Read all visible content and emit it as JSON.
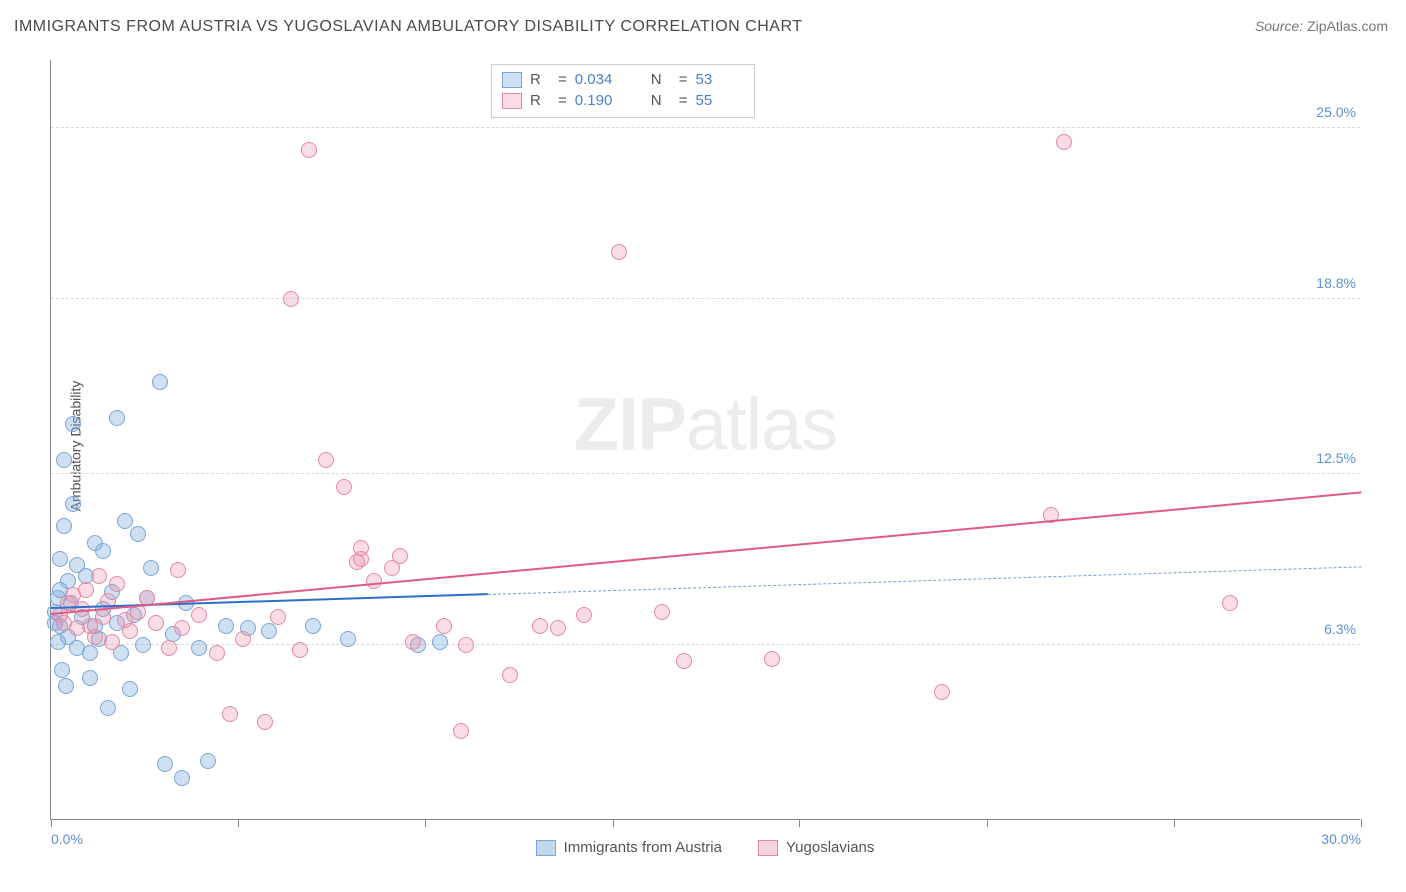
{
  "title": "IMMIGRANTS FROM AUSTRIA VS YUGOSLAVIAN AMBULATORY DISABILITY CORRELATION CHART",
  "source_label": "Source: ",
  "source_value": "ZipAtlas.com",
  "ylabel": "Ambulatory Disability",
  "watermark_bold": "ZIP",
  "watermark_rest": "atlas",
  "chart": {
    "type": "scatter",
    "xlim": [
      0,
      30
    ],
    "ylim": [
      0,
      27.5
    ],
    "xtick_positions": [
      0,
      4.29,
      8.57,
      12.86,
      17.14,
      21.43,
      25.71,
      30
    ],
    "xtick_labels_shown": {
      "0": "0.0%",
      "30": "30.0%"
    },
    "ytick_values": [
      6.3,
      12.5,
      18.8,
      25.0
    ],
    "ytick_labels": [
      "6.3%",
      "12.5%",
      "18.8%",
      "25.0%"
    ],
    "grid_color": "#d8d8d8",
    "background_color": "#ffffff",
    "axis_color": "#888888",
    "label_color": "#5b8fd6",
    "marker_radius": 8,
    "marker_border_width": 1.2,
    "series": [
      {
        "name": "Immigrants from Austria",
        "color_fill": "rgba(120,165,220,0.35)",
        "color_border": "#7aa6d8",
        "r_label": "R",
        "r_value": "0.034",
        "n_label": "N",
        "n_value": "53",
        "regression": {
          "x1": 0,
          "y1": 7.6,
          "x2": 10,
          "y2": 8.1,
          "solid_color": "#2e6fc9",
          "solid_width": 2.5,
          "dash_to_x": 30,
          "dash_to_y": 9.1,
          "dash_color": "#6f9fd8",
          "dash_width": 1.4
        },
        "points": [
          [
            0.1,
            7.1
          ],
          [
            0.1,
            7.5
          ],
          [
            0.15,
            8.0
          ],
          [
            0.15,
            6.4
          ],
          [
            0.2,
            7.0
          ],
          [
            0.2,
            8.3
          ],
          [
            0.2,
            9.4
          ],
          [
            0.25,
            5.4
          ],
          [
            0.3,
            13.0
          ],
          [
            0.3,
            10.6
          ],
          [
            0.35,
            4.8
          ],
          [
            0.4,
            6.6
          ],
          [
            0.4,
            8.6
          ],
          [
            0.45,
            7.8
          ],
          [
            0.5,
            14.3
          ],
          [
            0.5,
            11.4
          ],
          [
            0.6,
            9.2
          ],
          [
            0.6,
            6.2
          ],
          [
            0.7,
            7.3
          ],
          [
            0.8,
            8.8
          ],
          [
            0.9,
            6.0
          ],
          [
            0.9,
            5.1
          ],
          [
            1.0,
            10.0
          ],
          [
            1.0,
            7.0
          ],
          [
            1.1,
            6.5
          ],
          [
            1.2,
            9.7
          ],
          [
            1.2,
            7.6
          ],
          [
            1.3,
            4.0
          ],
          [
            1.4,
            8.2
          ],
          [
            1.5,
            7.1
          ],
          [
            1.5,
            14.5
          ],
          [
            1.6,
            6.0
          ],
          [
            1.7,
            10.8
          ],
          [
            1.8,
            4.7
          ],
          [
            1.9,
            7.4
          ],
          [
            2.0,
            10.3
          ],
          [
            2.1,
            6.3
          ],
          [
            2.2,
            8.0
          ],
          [
            2.3,
            9.1
          ],
          [
            2.5,
            15.8
          ],
          [
            2.6,
            2.0
          ],
          [
            2.8,
            6.7
          ],
          [
            3.0,
            1.5
          ],
          [
            3.1,
            7.8
          ],
          [
            3.4,
            6.2
          ],
          [
            3.6,
            2.1
          ],
          [
            4.0,
            7.0
          ],
          [
            4.5,
            6.9
          ],
          [
            5.0,
            6.8
          ],
          [
            6.8,
            6.5
          ],
          [
            8.4,
            6.3
          ],
          [
            8.9,
            6.4
          ],
          [
            6.0,
            7.0
          ]
        ]
      },
      {
        "name": "Yugoslavians",
        "color_fill": "rgba(235,140,165,0.30)",
        "color_border": "#e38aa3",
        "r_label": "R",
        "r_value": "0.190",
        "n_label": "N",
        "n_value": "55",
        "regression": {
          "x1": 0,
          "y1": 7.4,
          "x2": 30,
          "y2": 11.8,
          "solid_color": "#e15a87",
          "solid_width": 2.5
        },
        "points": [
          [
            0.2,
            7.4
          ],
          [
            0.3,
            7.1
          ],
          [
            0.4,
            7.8
          ],
          [
            0.5,
            8.1
          ],
          [
            0.6,
            6.9
          ],
          [
            0.7,
            7.6
          ],
          [
            0.8,
            8.3
          ],
          [
            0.9,
            7.0
          ],
          [
            1.0,
            6.6
          ],
          [
            1.1,
            8.8
          ],
          [
            1.2,
            7.3
          ],
          [
            1.3,
            7.9
          ],
          [
            1.4,
            6.4
          ],
          [
            1.5,
            8.5
          ],
          [
            1.7,
            7.2
          ],
          [
            1.8,
            6.8
          ],
          [
            2.0,
            7.5
          ],
          [
            2.2,
            8.0
          ],
          [
            2.4,
            7.1
          ],
          [
            2.7,
            6.2
          ],
          [
            2.9,
            9.0
          ],
          [
            3.0,
            6.9
          ],
          [
            3.4,
            7.4
          ],
          [
            3.8,
            6.0
          ],
          [
            4.1,
            3.8
          ],
          [
            4.4,
            6.5
          ],
          [
            4.9,
            3.5
          ],
          [
            5.2,
            7.3
          ],
          [
            5.5,
            18.8
          ],
          [
            5.7,
            6.1
          ],
          [
            5.9,
            24.2
          ],
          [
            6.3,
            13.0
          ],
          [
            6.7,
            12.0
          ],
          [
            7.1,
            9.4
          ],
          [
            7.1,
            9.8
          ],
          [
            7.4,
            8.6
          ],
          [
            7.8,
            9.1
          ],
          [
            8.0,
            9.5
          ],
          [
            8.3,
            6.4
          ],
          [
            9.0,
            7.0
          ],
          [
            9.4,
            3.2
          ],
          [
            9.5,
            6.3
          ],
          [
            10.5,
            5.2
          ],
          [
            11.2,
            7.0
          ],
          [
            11.6,
            6.9
          ],
          [
            12.2,
            7.4
          ],
          [
            13.0,
            20.5
          ],
          [
            14.0,
            7.5
          ],
          [
            14.5,
            5.7
          ],
          [
            16.5,
            5.8
          ],
          [
            20.4,
            4.6
          ],
          [
            22.9,
            11.0
          ],
          [
            23.2,
            24.5
          ],
          [
            27.0,
            7.8
          ],
          [
            7.0,
            9.3
          ]
        ]
      }
    ]
  },
  "bottom_legend": [
    {
      "label": "Immigrants from Austria",
      "fill": "rgba(120,165,220,0.45)",
      "border": "#7aa6d8"
    },
    {
      "label": "Yugoslavians",
      "fill": "rgba(235,140,165,0.40)",
      "border": "#e38aa3"
    }
  ]
}
